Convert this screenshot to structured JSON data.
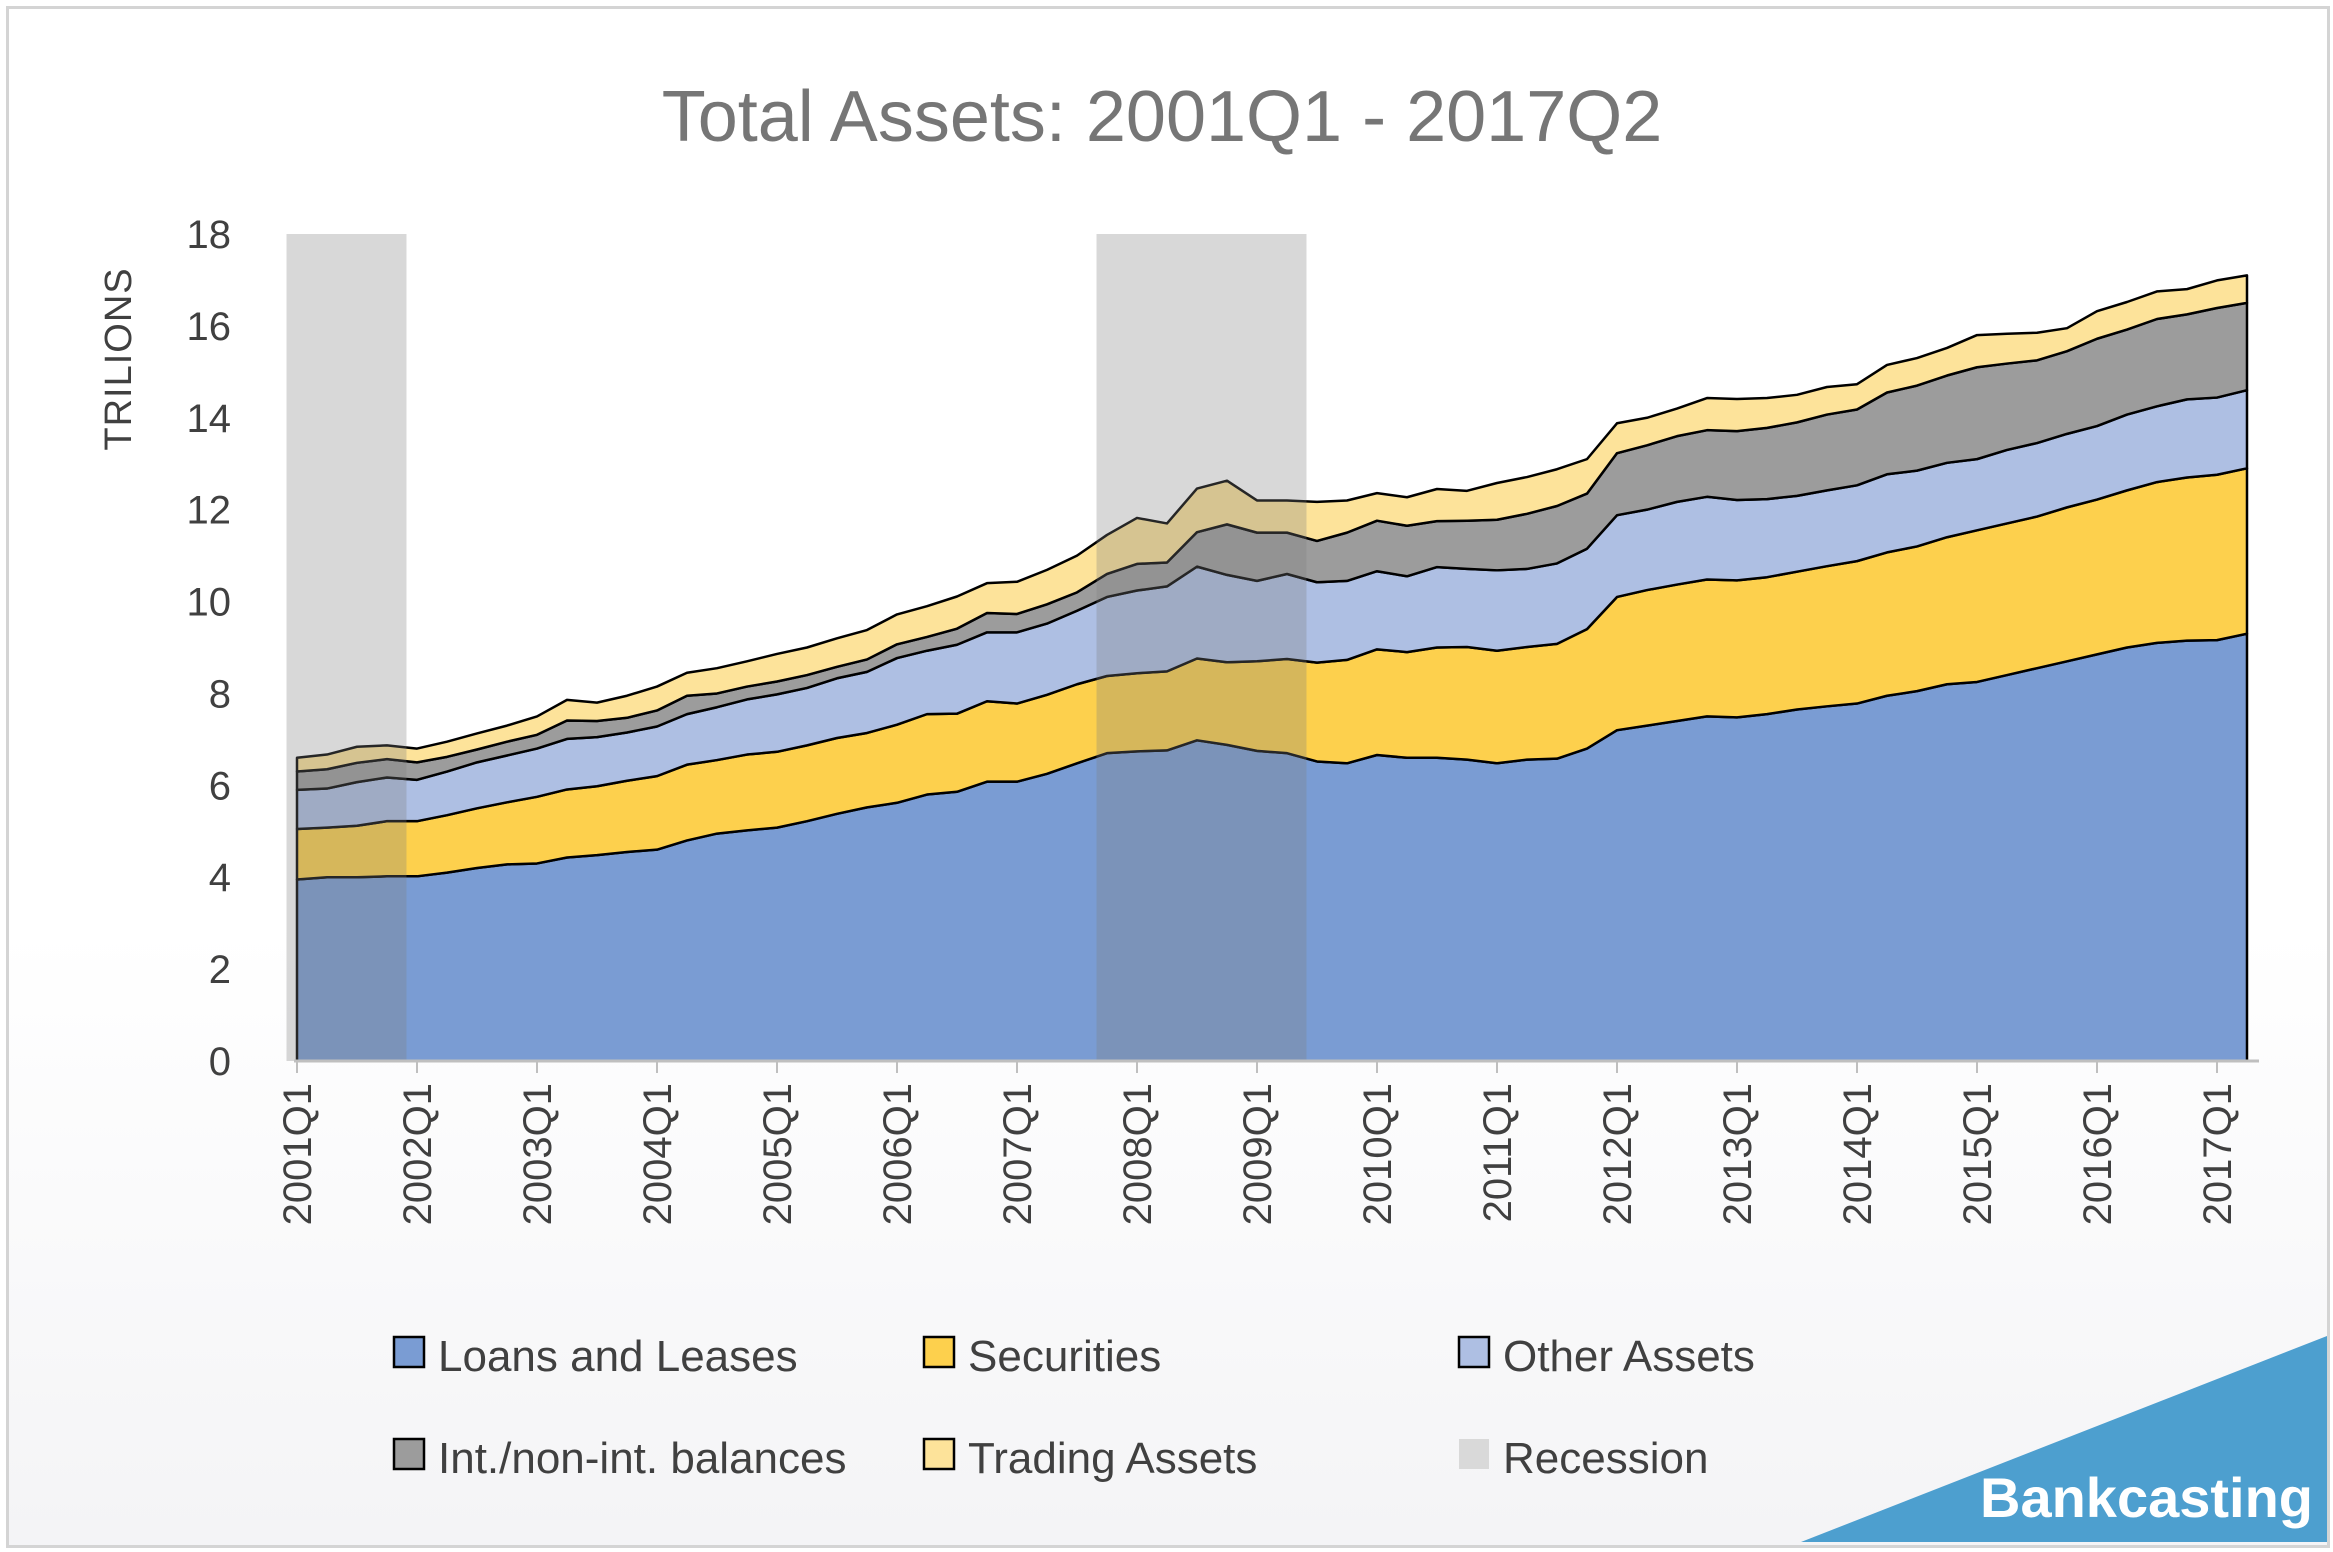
{
  "chart_data": {
    "type": "area",
    "stacked": true,
    "title": "Total Assets: 2001Q1 - 2017Q2",
    "ylabel": "TRILIONS",
    "xlabel": "",
    "ylim": [
      0,
      18
    ],
    "yticks": [
      0,
      2,
      4,
      6,
      8,
      10,
      12,
      14,
      16,
      18
    ],
    "xtick_labels": [
      "2001Q1",
      "2002Q1",
      "2003Q1",
      "2004Q1",
      "2005Q1",
      "2006Q1",
      "2007Q1",
      "2008Q1",
      "2009Q1",
      "2010Q1",
      "2011Q1",
      "2012Q1",
      "2013Q1",
      "2014Q1",
      "2015Q1",
      "2016Q1",
      "2017Q1"
    ],
    "x_start": "2001Q1",
    "x_end": "2017Q2",
    "grid": false,
    "legend_position": "bottom",
    "series": [
      {
        "name": "Loans and Leases",
        "color": "#7a9cd3",
        "values": [
          3.95,
          4.0,
          4.0,
          4.02,
          4.02,
          4.1,
          4.2,
          4.28,
          4.3,
          4.43,
          4.48,
          4.55,
          4.6,
          4.8,
          4.95,
          5.02,
          5.08,
          5.22,
          5.38,
          5.52,
          5.62,
          5.8,
          5.86,
          6.08,
          6.08,
          6.25,
          6.48,
          6.7,
          6.74,
          6.76,
          6.98,
          6.88,
          6.75,
          6.7,
          6.52,
          6.48,
          6.66,
          6.6,
          6.6,
          6.56,
          6.48,
          6.56,
          6.58,
          6.8,
          7.2,
          7.3,
          7.4,
          7.5,
          7.48,
          7.55,
          7.65,
          7.72,
          7.78,
          7.95,
          8.05,
          8.2,
          8.25,
          8.4,
          8.55,
          8.7,
          8.85,
          9.0,
          9.1,
          9.15,
          9.16,
          9.3
        ]
      },
      {
        "name": "Securities",
        "color": "#fdd04d",
        "values": [
          1.1,
          1.08,
          1.12,
          1.2,
          1.2,
          1.25,
          1.3,
          1.35,
          1.45,
          1.48,
          1.5,
          1.55,
          1.6,
          1.65,
          1.6,
          1.65,
          1.65,
          1.65,
          1.65,
          1.62,
          1.7,
          1.75,
          1.7,
          1.75,
          1.7,
          1.72,
          1.72,
          1.68,
          1.7,
          1.72,
          1.78,
          1.8,
          1.95,
          2.05,
          2.15,
          2.25,
          2.3,
          2.3,
          2.4,
          2.45,
          2.45,
          2.45,
          2.5,
          2.6,
          2.9,
          2.95,
          2.97,
          2.98,
          2.98,
          2.98,
          3.0,
          3.05,
          3.1,
          3.12,
          3.15,
          3.2,
          3.3,
          3.3,
          3.3,
          3.35,
          3.37,
          3.42,
          3.5,
          3.55,
          3.6,
          3.6
        ]
      },
      {
        "name": "Other Assets",
        "color": "#aebfe3",
        "values": [
          0.85,
          0.85,
          0.95,
          0.95,
          0.9,
          0.95,
          1.0,
          1.02,
          1.05,
          1.1,
          1.07,
          1.05,
          1.08,
          1.1,
          1.15,
          1.2,
          1.25,
          1.25,
          1.3,
          1.33,
          1.45,
          1.38,
          1.5,
          1.5,
          1.55,
          1.55,
          1.6,
          1.72,
          1.8,
          1.85,
          2.0,
          1.9,
          1.75,
          1.85,
          1.75,
          1.72,
          1.7,
          1.65,
          1.75,
          1.7,
          1.75,
          1.7,
          1.75,
          1.75,
          1.78,
          1.75,
          1.8,
          1.8,
          1.75,
          1.7,
          1.65,
          1.65,
          1.65,
          1.7,
          1.65,
          1.62,
          1.55,
          1.6,
          1.6,
          1.6,
          1.6,
          1.65,
          1.65,
          1.7,
          1.68,
          1.7
        ]
      },
      {
        "name": "Int./non-int. balances",
        "color": "#9c9c9c",
        "values": [
          0.4,
          0.42,
          0.42,
          0.4,
          0.38,
          0.32,
          0.28,
          0.3,
          0.3,
          0.4,
          0.35,
          0.32,
          0.35,
          0.4,
          0.3,
          0.28,
          0.28,
          0.28,
          0.25,
          0.27,
          0.3,
          0.3,
          0.35,
          0.42,
          0.4,
          0.42,
          0.4,
          0.5,
          0.58,
          0.52,
          0.75,
          1.1,
          1.05,
          0.9,
          0.9,
          1.05,
          1.1,
          1.1,
          1.0,
          1.05,
          1.1,
          1.2,
          1.25,
          1.2,
          1.35,
          1.4,
          1.43,
          1.45,
          1.5,
          1.55,
          1.6,
          1.65,
          1.65,
          1.78,
          1.85,
          1.9,
          2.0,
          1.88,
          1.8,
          1.8,
          1.9,
          1.85,
          1.9,
          1.85,
          1.95,
          1.9
        ]
      },
      {
        "name": "Trading Assets",
        "color": "#fde39a",
        "values": [
          0.3,
          0.32,
          0.35,
          0.3,
          0.3,
          0.33,
          0.35,
          0.35,
          0.4,
          0.45,
          0.4,
          0.48,
          0.52,
          0.5,
          0.55,
          0.55,
          0.6,
          0.6,
          0.62,
          0.64,
          0.65,
          0.67,
          0.7,
          0.65,
          0.7,
          0.75,
          0.8,
          0.85,
          1.0,
          0.85,
          0.95,
          0.95,
          0.7,
          0.7,
          0.85,
          0.7,
          0.6,
          0.62,
          0.7,
          0.65,
          0.8,
          0.8,
          0.8,
          0.75,
          0.65,
          0.6,
          0.6,
          0.7,
          0.7,
          0.65,
          0.6,
          0.6,
          0.55,
          0.6,
          0.6,
          0.6,
          0.7,
          0.65,
          0.6,
          0.5,
          0.6,
          0.6,
          0.6,
          0.55,
          0.6,
          0.6
        ]
      }
    ],
    "recession": {
      "name": "Recession",
      "color": "#d9d9d9",
      "periods": [
        [
          "2001Q1",
          "2001Q4"
        ],
        [
          "2007Q4",
          "2009Q2"
        ]
      ]
    }
  },
  "branding": {
    "text": "Bankcasting",
    "color": "#4d9fcf"
  }
}
